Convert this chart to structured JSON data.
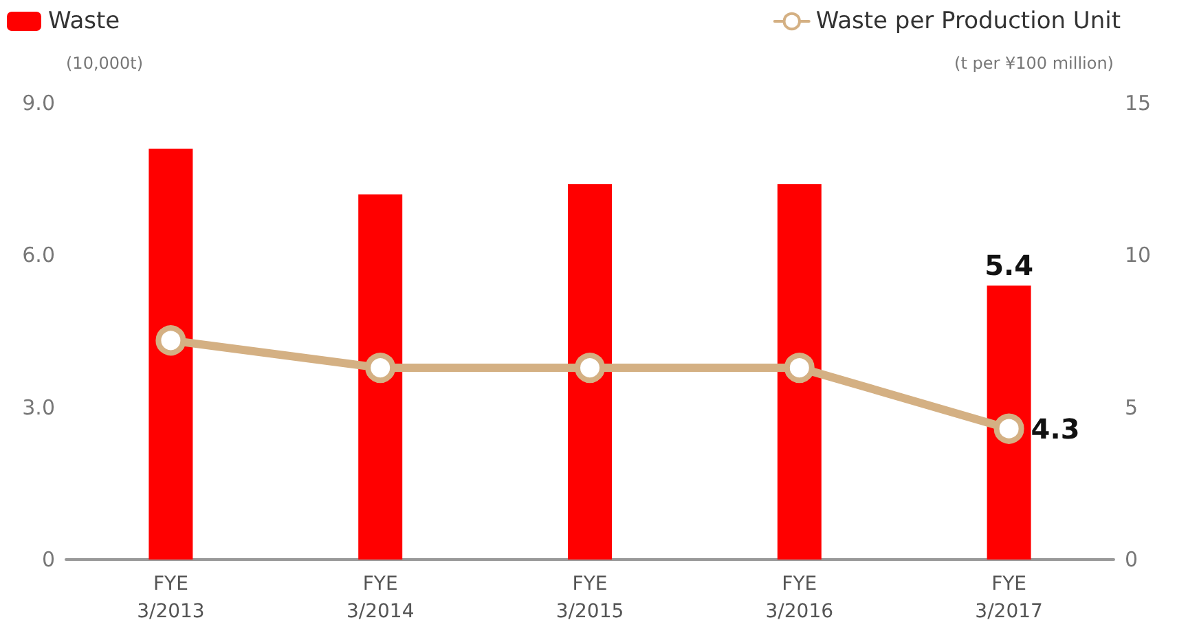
{
  "chart_data": {
    "type": "bar",
    "categories": [
      "FYE\n3/2013",
      "FYE\n3/2014",
      "FYE\n3/2015",
      "FYE\n3/2016",
      "FYE\n3/2017"
    ],
    "ylabel": "(10,000t)",
    "y2label": "(t per ¥100 million)",
    "ylim": [
      0,
      9
    ],
    "yticks": [
      {
        "value": 0,
        "label": "0"
      },
      {
        "value": 3,
        "label": "3.0"
      },
      {
        "value": 6,
        "label": "6.0"
      },
      {
        "value": 9,
        "label": "9.0"
      }
    ],
    "y2lim": [
      0,
      15
    ],
    "y2ticks": [
      0,
      5,
      10,
      15
    ],
    "series": [
      {
        "name": "Waste",
        "color": "#ff0000",
        "values": [
          8.1,
          7.2,
          7.4,
          7.4,
          5.4
        ],
        "value_labels": [
          null,
          null,
          null,
          null,
          "5.4"
        ]
      },
      {
        "name": "Waste per Production Unit",
        "type": "line",
        "axis": "y2",
        "color": "#d4b083",
        "marker": "circle",
        "values": [
          7.2,
          6.3,
          6.3,
          6.3,
          4.3
        ],
        "value_labels": [
          null,
          null,
          null,
          null,
          "4.3"
        ]
      }
    ],
    "legend": "top",
    "grid": false
  }
}
